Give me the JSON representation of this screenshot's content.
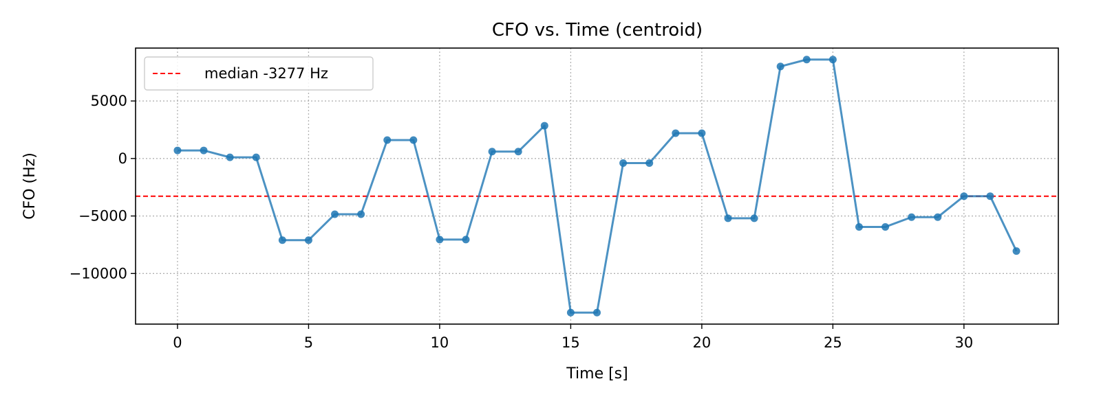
{
  "chart_data": {
    "type": "line",
    "title": "CFO vs. Time (centroid)",
    "xlabel": "Time [s]",
    "ylabel": "CFO (Hz)",
    "xlim": [
      -1.6,
      33.6
    ],
    "ylim": [
      -14400,
      9600
    ],
    "xticks": [
      0,
      5,
      10,
      15,
      20,
      25,
      30
    ],
    "xtick_labels": [
      "0",
      "5",
      "10",
      "15",
      "20",
      "25",
      "30"
    ],
    "yticks": [
      -10000,
      -5000,
      0,
      5000
    ],
    "ytick_labels": [
      "−10000",
      "−5000",
      "0",
      "5000"
    ],
    "grid": true,
    "legend_position": "top-left",
    "reference_line": {
      "label": "median -3277 Hz",
      "value": -3277,
      "color": "#ff0000",
      "style": "dashed"
    },
    "series": [
      {
        "color": "#1f77b4",
        "marker": "circle",
        "x": [
          0,
          1,
          2,
          3,
          4,
          5,
          6,
          7,
          8,
          9,
          10,
          11,
          12,
          13,
          14,
          15,
          16,
          17,
          18,
          19,
          20,
          21,
          22,
          23,
          24,
          25,
          26,
          27,
          28,
          29,
          30,
          31,
          32
        ],
        "y": [
          700,
          700,
          100,
          100,
          -7100,
          -7100,
          -4850,
          -4850,
          1600,
          1600,
          -7050,
          -7050,
          600,
          600,
          2850,
          -13400,
          -13400,
          -400,
          -400,
          2200,
          2200,
          -5200,
          -5200,
          8000,
          8600,
          8600,
          -5950,
          -5950,
          -5100,
          -5100,
          -3277,
          -3277,
          -8050
        ]
      }
    ]
  }
}
